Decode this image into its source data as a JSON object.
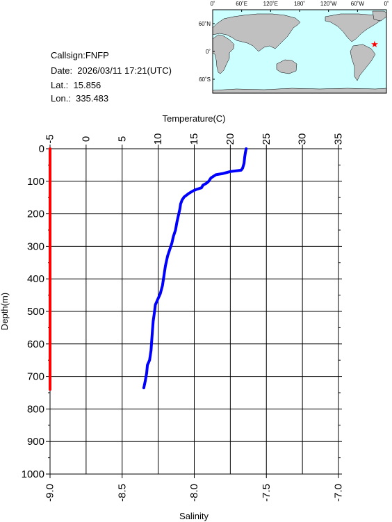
{
  "station": {
    "callsign": "Callsign:FNFP",
    "date": "Date:  2026/03/11 17:21(UTC)",
    "lat": "Lat.:  15.856",
    "lon": "Lon.:  335.483"
  },
  "map": {
    "lon_labels": [
      "0˚",
      "60˚E",
      "120˚E",
      "180˚",
      "120˚W",
      "60˚W",
      "0˚"
    ],
    "lat_labels": [
      "60˚N",
      "0˚",
      "60˚S"
    ],
    "marker": {
      "lon": 335.483,
      "lat": 15.856,
      "color": "#ff0000"
    },
    "ocean_color": "#ccffff",
    "land_color": "#c0c0c0"
  },
  "chart_data": {
    "type": "line",
    "title": "",
    "top_axis": {
      "label": "Temperature(C)",
      "range": [
        -5,
        35
      ],
      "ticks": [
        "-5",
        "0",
        "5",
        "10",
        "15",
        "20",
        "25",
        "30",
        "35"
      ]
    },
    "bottom_axis": {
      "label": "Salinity",
      "range": [
        -9.0,
        -7.0
      ],
      "ticks": [
        "-9.0",
        "-8.5",
        "-8.0",
        "-7.5",
        "-7.0"
      ]
    },
    "y_axis": {
      "label": "Depth(m)",
      "range": [
        0,
        1000
      ],
      "inverted": true,
      "ticks": [
        "0",
        "100",
        "200",
        "300",
        "400",
        "500",
        "600",
        "700",
        "800",
        "900",
        "1000"
      ]
    },
    "grid": true,
    "series": [
      {
        "name": "Temperature",
        "axis": "top",
        "color": "#0000ff",
        "points": [
          [
            22.2,
            0
          ],
          [
            22.1,
            10
          ],
          [
            22.0,
            25
          ],
          [
            21.9,
            45
          ],
          [
            21.7,
            60
          ],
          [
            21.5,
            66
          ],
          [
            20.0,
            70
          ],
          [
            19.0,
            76
          ],
          [
            18.0,
            80
          ],
          [
            17.3,
            90
          ],
          [
            17.0,
            100
          ],
          [
            16.7,
            106
          ],
          [
            16.2,
            112
          ],
          [
            16.0,
            120
          ],
          [
            15.3,
            125
          ],
          [
            14.8,
            130
          ],
          [
            14.2,
            138
          ],
          [
            13.6,
            148
          ],
          [
            13.3,
            158
          ],
          [
            13.1,
            170
          ],
          [
            13.0,
            185
          ],
          [
            12.8,
            205
          ],
          [
            12.6,
            225
          ],
          [
            12.4,
            250
          ],
          [
            12.1,
            270
          ],
          [
            11.9,
            290
          ],
          [
            11.6,
            310
          ],
          [
            11.3,
            330
          ],
          [
            11.0,
            360
          ],
          [
            10.8,
            390
          ],
          [
            10.6,
            420
          ],
          [
            10.3,
            445
          ],
          [
            9.9,
            465
          ],
          [
            9.6,
            480
          ],
          [
            9.5,
            500
          ],
          [
            9.3,
            530
          ],
          [
            9.2,
            560
          ],
          [
            9.1,
            590
          ],
          [
            9.0,
            620
          ],
          [
            8.8,
            650
          ],
          [
            8.5,
            665
          ],
          [
            8.4,
            690
          ],
          [
            8.2,
            715
          ],
          [
            8.0,
            735
          ]
        ]
      },
      {
        "name": "Salinity",
        "axis": "bottom",
        "color": "#ff0000",
        "points": [
          [
            -9.0,
            0
          ],
          [
            -9.0,
            740
          ]
        ]
      }
    ]
  }
}
